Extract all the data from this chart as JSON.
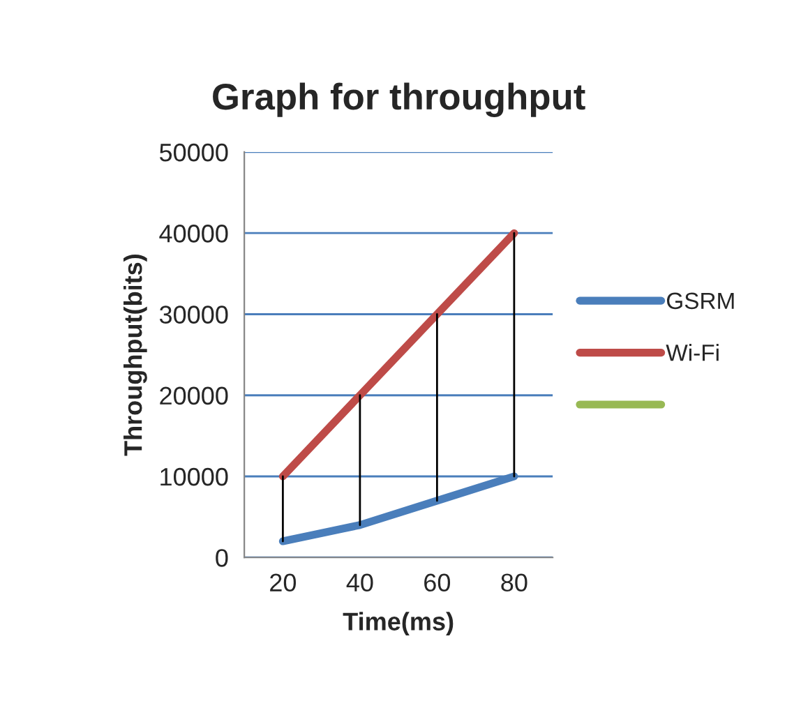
{
  "chart_data": {
    "type": "line",
    "title": "Graph for throughput",
    "xlabel": "Time(ms)",
    "ylabel": "Throughput(bits)",
    "categories": [
      "20",
      "40",
      "60",
      "80"
    ],
    "series": [
      {
        "name": "GSRM",
        "color": "#4a7ebb",
        "values": [
          2000,
          4000,
          7000,
          10000
        ]
      },
      {
        "name": "Wi-Fi",
        "color": "#be4b48",
        "values": [
          10000,
          20000,
          30000,
          40000
        ],
        "errors": [
          [
            2000,
            10000
          ],
          [
            4000,
            20000
          ],
          [
            7000,
            30000
          ],
          [
            10000,
            40000
          ]
        ]
      },
      {
        "color": "#98b954",
        "values": [
          null,
          null,
          null,
          null
        ]
      }
    ],
    "ylim": [
      0,
      50000
    ],
    "yticks": [
      0,
      10000,
      20000,
      30000,
      40000,
      50000
    ],
    "grid": "y",
    "legend": "right",
    "marker": "none",
    "line_style": "solid"
  }
}
